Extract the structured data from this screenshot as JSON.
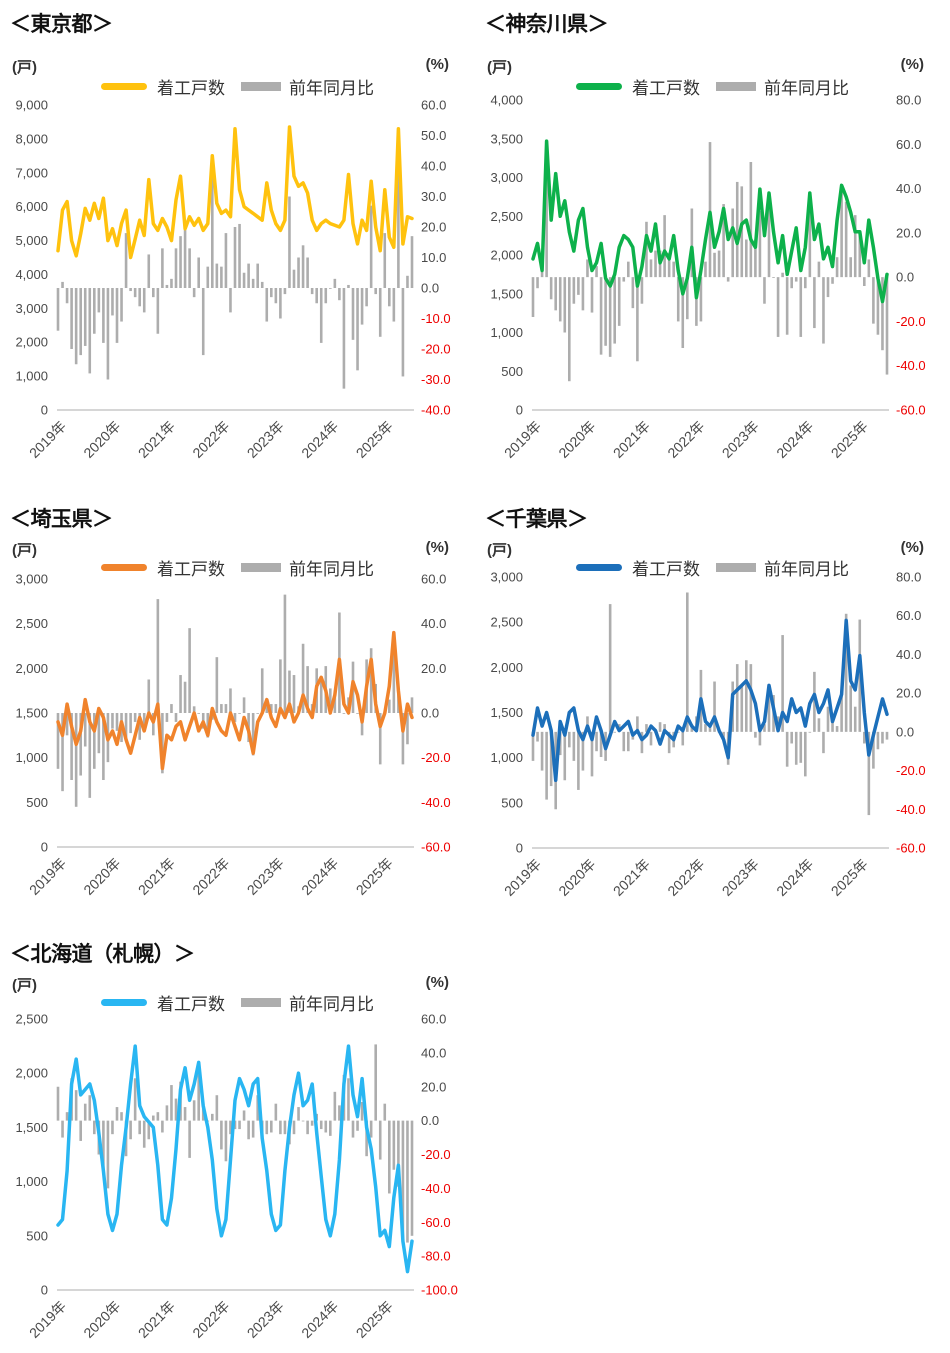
{
  "page": {
    "background": "#FFFFFF"
  },
  "chart_data": [
    {
      "type": "line+bar",
      "region": "東京都",
      "title": "＜東京都＞",
      "unit_left": "(戸)",
      "unit_right": "(%)",
      "legend_line": "着工戸数",
      "legend_bars": "前年同月比",
      "line_color": "#FFC20E",
      "bar_color": "#ADADAD",
      "negative_tick_color": "#EE0000",
      "x_start": "2019-01",
      "x_frequency": "monthly",
      "x_labels": [
        "2019年",
        "2020年",
        "2021年",
        "2022年",
        "2023年",
        "2024年",
        "2025年"
      ],
      "left_axis": {
        "min": 0,
        "max": 9000,
        "tick_labels": [
          "9,000",
          "8,000",
          "7,000",
          "6,000",
          "5,000",
          "4,000",
          "3,000",
          "2,000",
          "1,000",
          "0"
        ]
      },
      "right_axis": {
        "min": -40,
        "max": 60,
        "tick_labels": [
          "60.0",
          "50.0",
          "40.0",
          "30.0",
          "20.0",
          "10.0",
          "0.0",
          "-10.0",
          "-20.0",
          "-30.0",
          "-40.0"
        ]
      },
      "series": {
        "line": {
          "name": "着工戸数",
          "values": [
            4700,
            5900,
            6150,
            5000,
            4550,
            5200,
            5950,
            5600,
            6100,
            5650,
            6250,
            5000,
            5350,
            4850,
            5500,
            5900,
            4500,
            5050,
            5600,
            5150,
            6800,
            5500,
            5300,
            5650,
            5400,
            5000,
            6200,
            6900,
            5350,
            5700,
            5450,
            5650,
            5300,
            5500,
            7500,
            6100,
            5800,
            5900,
            5700,
            8300,
            6500,
            6000,
            5900,
            5800,
            5700,
            5600,
            6700,
            5900,
            5500,
            5300,
            5600,
            8350,
            6900,
            6600,
            6700,
            6400,
            5600,
            5300,
            5500,
            5600,
            5500,
            5450,
            5400,
            5600,
            6950,
            5500,
            4900,
            5600,
            5300,
            6750,
            5400,
            4700,
            6500,
            5100,
            4800,
            8300,
            4900,
            5700,
            5650
          ]
        },
        "bars": {
          "name": "前年同月比",
          "values": [
            -14,
            2,
            -5,
            -20,
            -25,
            -22,
            -19,
            -28,
            -15,
            -8,
            -18,
            -30,
            -9,
            -18,
            -11,
            18,
            -1,
            -3,
            -6,
            -8,
            11,
            -3,
            -15,
            13,
            1,
            3,
            13,
            17,
            19,
            13,
            -3,
            10,
            -22,
            7,
            42,
            8,
            7,
            18,
            -8,
            20,
            21,
            5,
            8,
            3,
            8,
            2,
            -11,
            -3,
            -5,
            -10,
            -2,
            30,
            6,
            10,
            14,
            10,
            -2,
            -5,
            -18,
            -5,
            0,
            3,
            -4,
            -33,
            1,
            -17,
            -27,
            -12,
            -6,
            27,
            -2,
            -16,
            18,
            -6,
            -11,
            48,
            -29,
            4,
            17
          ]
        }
      }
    },
    {
      "type": "line+bar",
      "region": "神奈川県",
      "title": "＜神奈川県＞",
      "unit_left": "(戸)",
      "unit_right": "(%)",
      "legend_line": "着工戸数",
      "legend_bars": "前年同月比",
      "line_color": "#0DB14B",
      "bar_color": "#ADADAD",
      "negative_tick_color": "#EE0000",
      "x_start": "2019-01",
      "x_frequency": "monthly",
      "x_labels": [
        "2019年",
        "2020年",
        "2021年",
        "2022年",
        "2023年",
        "2024年",
        "2025年"
      ],
      "left_axis": {
        "min": 0,
        "max": 4000,
        "tick_labels": [
          "4,000",
          "3,500",
          "3,000",
          "2,500",
          "2,000",
          "1,500",
          "1,000",
          "500",
          "0"
        ]
      },
      "right_axis": {
        "min": -60,
        "max": 80,
        "tick_labels": [
          "80.0",
          "60.0",
          "40.0",
          "20.0",
          "0.0",
          "-20.0",
          "-40.0",
          "-60.0"
        ]
      },
      "series": {
        "line": {
          "name": "着工戸数",
          "values": [
            1950,
            2150,
            1800,
            3470,
            2450,
            3050,
            2500,
            2700,
            2300,
            2050,
            2450,
            2600,
            2100,
            1800,
            1900,
            2150,
            1700,
            1600,
            1750,
            2100,
            2250,
            2200,
            2100,
            1600,
            1850,
            2250,
            2050,
            2400,
            1900,
            2050,
            1950,
            2250,
            1800,
            1500,
            1700,
            2100,
            1450,
            1800,
            2200,
            2550,
            2100,
            2300,
            2600,
            2200,
            2350,
            2150,
            2400,
            2450,
            2200,
            2100,
            2850,
            2250,
            2800,
            2300,
            1900,
            2250,
            1750,
            2050,
            2350,
            1800,
            2100,
            2800,
            2200,
            2400,
            1950,
            2100,
            1850,
            2450,
            2900,
            2750,
            2550,
            2300,
            2300,
            1900,
            2450,
            2100,
            1700,
            1400,
            1750
          ]
        },
        "bars": {
          "name": "前年同月比",
          "values": [
            -18,
            -5,
            3,
            52,
            -10,
            -15,
            -20,
            -25,
            -47,
            -12,
            -8,
            -15,
            8,
            -16,
            5,
            -35,
            -31,
            -36,
            -30,
            -22,
            -2,
            7,
            -14,
            -38,
            -12,
            25,
            8,
            12,
            12,
            28,
            11,
            7,
            -20,
            -32,
            -19,
            31,
            -22,
            -20,
            7,
            61,
            11,
            12,
            33,
            -2,
            31,
            43,
            41,
            17,
            52,
            17,
            30,
            -12,
            33,
            0,
            -27,
            2,
            -26,
            -5,
            -2,
            -27,
            -5,
            33,
            -23,
            7,
            -30,
            -9,
            -3,
            9,
            40,
            34,
            9,
            28,
            21,
            -4,
            8,
            -21,
            -26,
            -33,
            -44
          ]
        }
      }
    },
    {
      "type": "line+bar",
      "region": "埼玉県",
      "title": "＜埼玉県＞",
      "unit_left": "(戸)",
      "unit_right": "(%)",
      "legend_line": "着工戸数",
      "legend_bars": "前年同月比",
      "line_color": "#F0832C",
      "bar_color": "#ADADAD",
      "negative_tick_color": "#EE0000",
      "x_start": "2019-01",
      "x_frequency": "monthly",
      "x_labels": [
        "2019年",
        "2020年",
        "2021年",
        "2022年",
        "2023年",
        "2024年",
        "2025年"
      ],
      "left_axis": {
        "min": 0,
        "max": 3000,
        "tick_labels": [
          "3,000",
          "2,500",
          "2,000",
          "1,500",
          "1,000",
          "500",
          "0"
        ]
      },
      "right_axis": {
        "min": -60,
        "max": 60,
        "tick_labels": [
          "60.0",
          "40.0",
          "20.0",
          "0.0",
          "-20.0",
          "-40.0",
          "-60.0"
        ]
      },
      "series": {
        "line": {
          "name": "着工戸数",
          "values": [
            1400,
            1250,
            1600,
            1350,
            1150,
            1300,
            1650,
            1400,
            1300,
            1550,
            1450,
            1200,
            1300,
            1150,
            1400,
            1200,
            1050,
            1250,
            1450,
            1300,
            1500,
            1400,
            1600,
            880,
            1250,
            1200,
            1350,
            1400,
            1200,
            1350,
            1500,
            1300,
            1400,
            1250,
            1550,
            1400,
            1300,
            1250,
            1500,
            1350,
            1200,
            1450,
            1300,
            1050,
            1400,
            1500,
            1650,
            1450,
            1350,
            1550,
            1450,
            1600,
            1400,
            1500,
            1700,
            1550,
            1450,
            1800,
            1900,
            1750,
            1500,
            1700,
            2100,
            1600,
            1500,
            1850,
            1700,
            1400,
            1800,
            2100,
            1600,
            1350,
            1500,
            1800,
            2400,
            1750,
            1300,
            1600,
            1450
          ]
        },
        "bars": {
          "name": "前年同月比",
          "values": [
            -25,
            -35,
            -10,
            -30,
            -42,
            -28,
            -15,
            -38,
            -25,
            -18,
            -30,
            -22,
            -7,
            -8,
            -13,
            -11,
            -9,
            -4,
            -12,
            -7,
            15,
            -10,
            51,
            -27,
            -4,
            4,
            -4,
            17,
            14,
            38,
            3,
            0,
            -7,
            -11,
            -3,
            25,
            4,
            4,
            11,
            -4,
            0,
            7,
            -13,
            -19,
            0,
            20,
            6,
            4,
            4,
            24,
            53,
            19,
            17,
            3,
            31,
            21,
            4,
            20,
            15,
            21,
            11,
            10,
            45,
            0,
            7,
            23,
            0,
            -10,
            24,
            29,
            13,
            -23,
            0,
            6,
            36,
            9,
            -23,
            -14,
            7
          ]
        }
      }
    },
    {
      "type": "line+bar",
      "region": "千葉県",
      "title": "＜千葉県＞",
      "unit_left": "(戸)",
      "unit_right": "(%)",
      "legend_line": "着工戸数",
      "legend_bars": "前年同月比",
      "line_color": "#1C6FBA",
      "bar_color": "#ADADAD",
      "negative_tick_color": "#EE0000",
      "x_start": "2019-01",
      "x_frequency": "monthly",
      "x_labels": [
        "2019年",
        "2020年",
        "2021年",
        "2022年",
        "2023年",
        "2024年",
        "2025年"
      ],
      "left_axis": {
        "min": 0,
        "max": 3000,
        "tick_labels": [
          "3,000",
          "2,500",
          "2,000",
          "1,500",
          "1,000",
          "500",
          "0"
        ]
      },
      "right_axis": {
        "min": -60,
        "max": 80,
        "tick_labels": [
          "80.0",
          "60.0",
          "40.0",
          "20.0",
          "0.0",
          "-20.0",
          "-40.0",
          "-60.0"
        ]
      },
      "series": {
        "line": {
          "name": "着工戸数",
          "values": [
            1250,
            1550,
            1350,
            1500,
            1300,
            750,
            1400,
            1250,
            1500,
            1550,
            1300,
            1200,
            1350,
            1200,
            1450,
            1300,
            1100,
            1250,
            1400,
            1300,
            1350,
            1400,
            1250,
            1300,
            1200,
            1250,
            1350,
            1300,
            1150,
            1300,
            1250,
            1200,
            1350,
            1300,
            1450,
            1350,
            1300,
            1650,
            1400,
            1350,
            1450,
            1300,
            1200,
            1000,
            1700,
            1750,
            1800,
            1850,
            1750,
            1600,
            1300,
            1400,
            1800,
            1550,
            1300,
            1500,
            1400,
            1650,
            1500,
            1550,
            1350,
            1600,
            1700,
            1500,
            1600,
            1750,
            1400,
            1550,
            1700,
            2520,
            1850,
            1750,
            2130,
            1500,
            1030,
            1250,
            1450,
            1650,
            1480
          ]
        },
        "bars": {
          "name": "前年同月比",
          "values": [
            -15,
            -5,
            -20,
            -35,
            -28,
            -40,
            -12,
            -25,
            -8,
            -15,
            -30,
            -20,
            8,
            -23,
            -10,
            -13,
            -15,
            66,
            0,
            4,
            -10,
            -10,
            -4,
            8,
            -11,
            4,
            -7,
            0,
            5,
            4,
            -11,
            -8,
            0,
            -7,
            72,
            4,
            8,
            32,
            4,
            4,
            26,
            0,
            -4,
            -17,
            26,
            35,
            24,
            37,
            35,
            -3,
            -7,
            4,
            24,
            19,
            8,
            50,
            -18,
            -6,
            -17,
            -16,
            -23,
            0,
            31,
            7,
            -11,
            13,
            8,
            3,
            21,
            61,
            24,
            13,
            58,
            -6,
            -43,
            -19,
            -9,
            -6,
            -4
          ]
        }
      }
    },
    {
      "type": "line+bar",
      "region": "北海道（札幌）",
      "title": "＜北海道（札幌）＞",
      "unit_left": "(戸)",
      "unit_right": "(%)",
      "legend_line": "着工戸数",
      "legend_bars": "前年同月比",
      "line_color": "#29B6F2",
      "bar_color": "#ADADAD",
      "negative_tick_color": "#EE0000",
      "x_start": "2019-01",
      "x_frequency": "monthly",
      "x_labels": [
        "2019年",
        "2020年",
        "2021年",
        "2022年",
        "2023年",
        "2024年",
        "2025年"
      ],
      "left_axis": {
        "min": 0,
        "max": 2500,
        "tick_labels": [
          "2,500",
          "2,000",
          "1,500",
          "1,000",
          "500",
          "0"
        ]
      },
      "right_axis": {
        "min": -100,
        "max": 60,
        "tick_labels": [
          "60.0",
          "40.0",
          "20.0",
          "0.0",
          "-20.0",
          "-40.0",
          "-60.0",
          "-80.0",
          "-100.0"
        ]
      },
      "series": {
        "line": {
          "name": "着工戸数",
          "values": [
            600,
            650,
            1100,
            1900,
            2130,
            1800,
            1850,
            1900,
            1750,
            1450,
            1100,
            700,
            550,
            700,
            1150,
            1500,
            1900,
            2250,
            1700,
            1600,
            1550,
            1500,
            1150,
            650,
            600,
            850,
            1300,
            1850,
            2050,
            1750,
            1900,
            2100,
            1700,
            1500,
            1200,
            750,
            500,
            650,
            1200,
            1750,
            1950,
            1850,
            1700,
            1900,
            1950,
            1400,
            1100,
            700,
            550,
            600,
            1100,
            1500,
            1800,
            2000,
            1700,
            1750,
            1900,
            1450,
            1050,
            650,
            500,
            700,
            1200,
            1900,
            2250,
            1800,
            1600,
            1950,
            1500,
            1300,
            950,
            500,
            550,
            400,
            850,
            1150,
            450,
            170,
            450
          ]
        },
        "bars": {
          "name": "前年同月比",
          "values": [
            20,
            -10,
            5,
            25,
            18,
            -12,
            10,
            15,
            -8,
            -20,
            -30,
            -40,
            -8,
            8,
            5,
            -21,
            -11,
            25,
            -8,
            -16,
            -11,
            3,
            5,
            -7,
            9,
            21,
            13,
            23,
            8,
            -22,
            12,
            31,
            10,
            0,
            4,
            15,
            -17,
            -24,
            -8,
            -5,
            -5,
            6,
            -11,
            -10,
            15,
            -7,
            -8,
            -7,
            10,
            -8,
            -8,
            -14,
            -8,
            8,
            0,
            -8,
            -3,
            4,
            -5,
            -7,
            -9,
            17,
            9,
            27,
            25,
            -10,
            -6,
            11,
            -21,
            -10,
            45,
            -23,
            10,
            -43,
            -29,
            -39,
            -70,
            -72,
            -68
          ]
        }
      }
    }
  ]
}
